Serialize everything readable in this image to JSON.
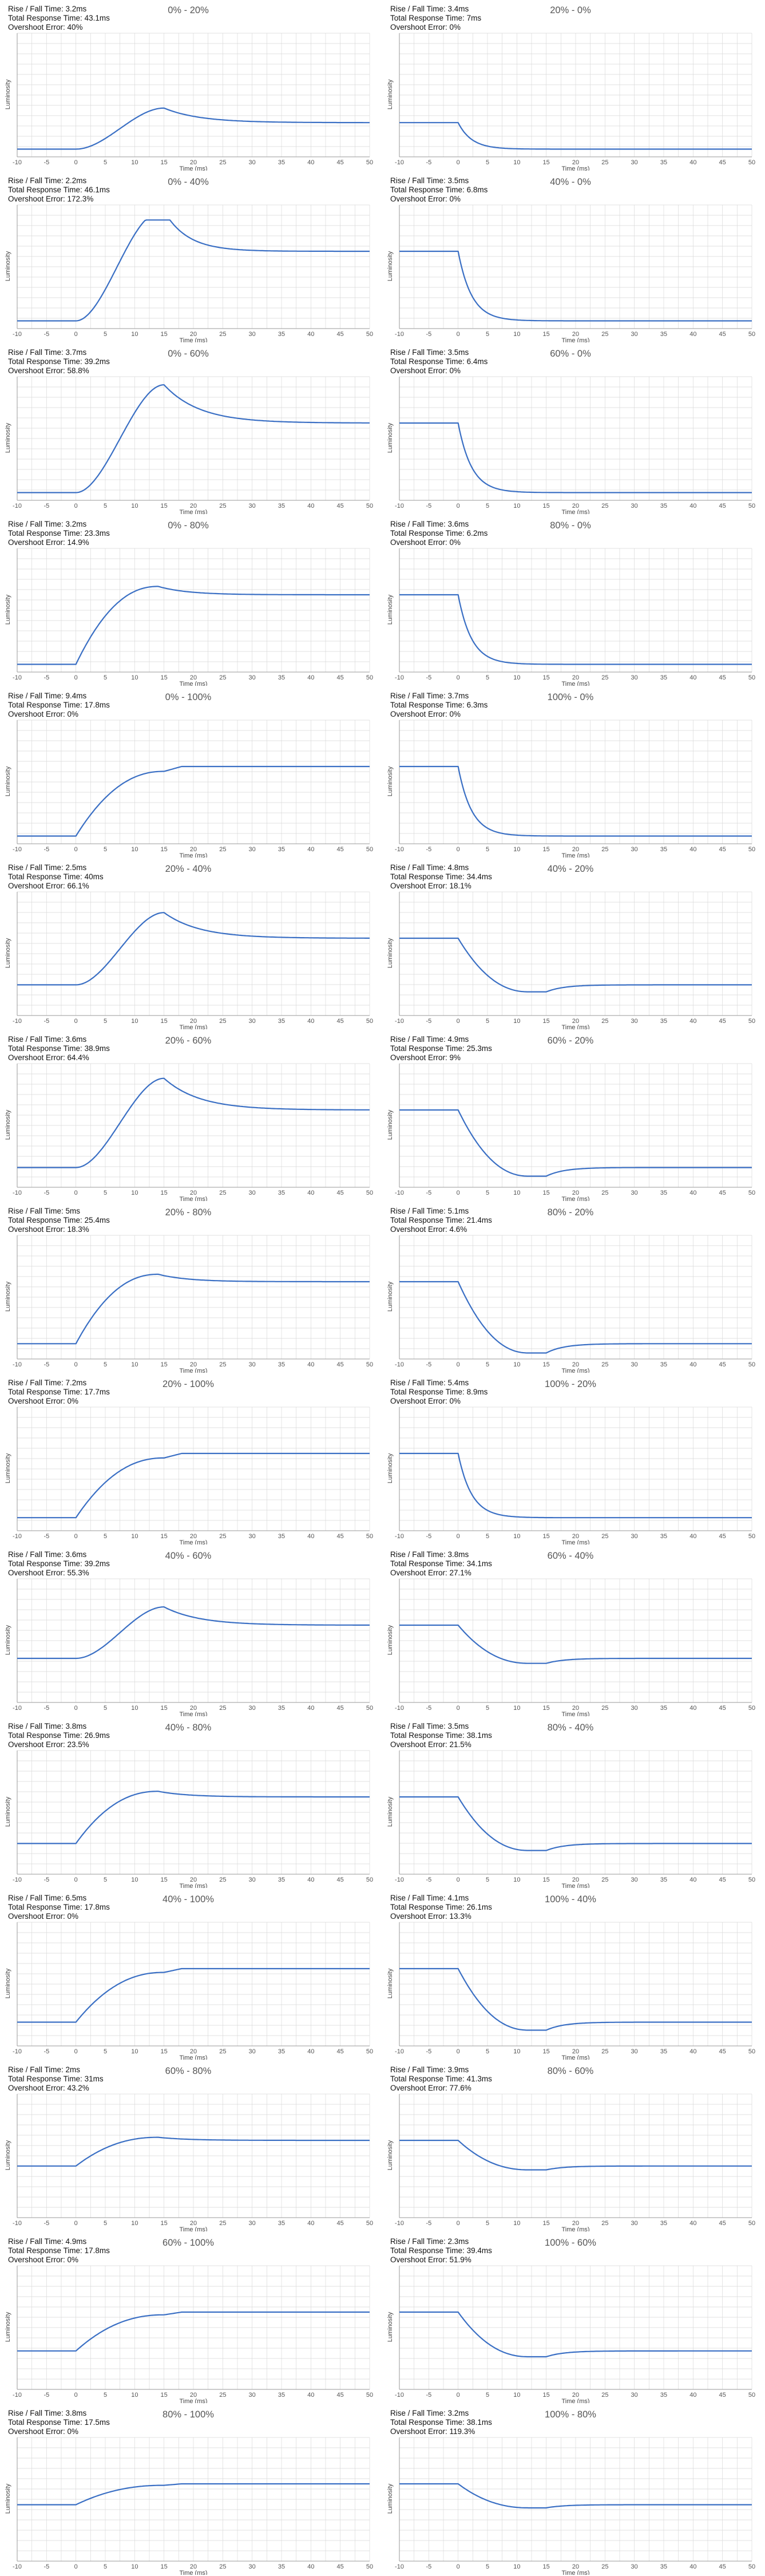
{
  "style": {
    "line_color": "#3a6fc4",
    "grid_color": "#d9d9d9",
    "axis_color": "#9a9a9a"
  },
  "stat_labels": {
    "rise_fall": "Rise / Fall Time",
    "total": "Total Response Time",
    "overshoot": "Overshoot Error"
  },
  "chart_data": [
    {
      "type": "line",
      "title": "0% - 20%",
      "rise_fall": "3.2ms",
      "total": "43.1ms",
      "overshoot": "40%",
      "transition": [
        0,
        20
      ],
      "curve": "overshoot_slow",
      "xlabel": "Time (ms)",
      "ylabel": "Luminosity",
      "xlim": [
        -10,
        50
      ],
      "x_ticks": [
        -10,
        -5,
        0,
        5,
        10,
        15,
        20,
        25,
        30,
        35,
        40,
        45,
        50
      ],
      "grid": true
    },
    {
      "type": "line",
      "title": "20% - 0%",
      "rise_fall": "3.4ms",
      "total": "7ms",
      "overshoot": "0%",
      "transition": [
        20,
        0
      ],
      "curve": "fall_clean",
      "xlabel": "Time (ms)",
      "ylabel": "Luminosity",
      "xlim": [
        -10,
        50
      ],
      "x_ticks": [
        -10,
        -5,
        0,
        5,
        10,
        15,
        20,
        25,
        30,
        35,
        40,
        45,
        50
      ],
      "grid": true
    },
    {
      "type": "line",
      "title": "0% - 40%",
      "rise_fall": "2.2ms",
      "total": "46.1ms",
      "overshoot": "172.3%",
      "transition": [
        0,
        40
      ],
      "curve": "overshoot_clipped",
      "xlabel": "Time (ms)",
      "ylabel": "Luminosity",
      "xlim": [
        -10,
        50
      ],
      "x_ticks": [
        -10,
        -5,
        0,
        5,
        10,
        15,
        20,
        25,
        30,
        35,
        40,
        45,
        50
      ],
      "grid": true
    },
    {
      "type": "line",
      "title": "40% - 0%",
      "rise_fall": "3.5ms",
      "total": "6.8ms",
      "overshoot": "0%",
      "transition": [
        40,
        0
      ],
      "curve": "fall_clean",
      "xlabel": "Time (ms)",
      "ylabel": "Luminosity",
      "xlim": [
        -10,
        50
      ],
      "x_ticks": [
        -10,
        -5,
        0,
        5,
        10,
        15,
        20,
        25,
        30,
        35,
        40,
        45,
        50
      ],
      "grid": true
    },
    {
      "type": "line",
      "title": "0% - 60%",
      "rise_fall": "3.7ms",
      "total": "39.2ms",
      "overshoot": "58.8%",
      "transition": [
        0,
        60
      ],
      "curve": "overshoot_slow",
      "xlabel": "Time (ms)",
      "ylabel": "Luminosity",
      "xlim": [
        -10,
        50
      ],
      "x_ticks": [
        -10,
        -5,
        0,
        5,
        10,
        15,
        20,
        25,
        30,
        35,
        40,
        45,
        50
      ],
      "grid": true
    },
    {
      "type": "line",
      "title": "60% - 0%",
      "rise_fall": "3.5ms",
      "total": "6.4ms",
      "overshoot": "0%",
      "transition": [
        60,
        0
      ],
      "curve": "fall_clean",
      "xlabel": "Time (ms)",
      "ylabel": "Luminosity",
      "xlim": [
        -10,
        50
      ],
      "x_ticks": [
        -10,
        -5,
        0,
        5,
        10,
        15,
        20,
        25,
        30,
        35,
        40,
        45,
        50
      ],
      "grid": true
    },
    {
      "type": "line",
      "title": "0% - 80%",
      "rise_fall": "3.2ms",
      "total": "23.3ms",
      "overshoot": "14.9%",
      "transition": [
        0,
        80
      ],
      "curve": "overshoot_small",
      "xlabel": "Time (ms)",
      "ylabel": "Luminosity",
      "xlim": [
        -10,
        50
      ],
      "x_ticks": [
        -10,
        -5,
        0,
        5,
        10,
        15,
        20,
        25,
        30,
        35,
        40,
        45,
        50
      ],
      "grid": true
    },
    {
      "type": "line",
      "title": "80% - 0%",
      "rise_fall": "3.6ms",
      "total": "6.2ms",
      "overshoot": "0%",
      "transition": [
        80,
        0
      ],
      "curve": "fall_clean",
      "xlabel": "Time (ms)",
      "ylabel": "Luminosity",
      "xlim": [
        -10,
        50
      ],
      "x_ticks": [
        -10,
        -5,
        0,
        5,
        10,
        15,
        20,
        25,
        30,
        35,
        40,
        45,
        50
      ],
      "grid": true
    },
    {
      "type": "line",
      "title": "0% - 100%",
      "rise_fall": "9.4ms",
      "total": "17.8ms",
      "overshoot": "0%",
      "transition": [
        0,
        100
      ],
      "curve": "rise_clean",
      "xlabel": "Time (ms)",
      "ylabel": "Luminosity",
      "xlim": [
        -10,
        50
      ],
      "x_ticks": [
        -10,
        -5,
        0,
        5,
        10,
        15,
        20,
        25,
        30,
        35,
        40,
        45,
        50
      ],
      "grid": true
    },
    {
      "type": "line",
      "title": "100% - 0%",
      "rise_fall": "3.7ms",
      "total": "6.3ms",
      "overshoot": "0%",
      "transition": [
        100,
        0
      ],
      "curve": "fall_clean",
      "xlabel": "Time (ms)",
      "ylabel": "Luminosity",
      "xlim": [
        -10,
        50
      ],
      "x_ticks": [
        -10,
        -5,
        0,
        5,
        10,
        15,
        20,
        25,
        30,
        35,
        40,
        45,
        50
      ],
      "grid": true
    },
    {
      "type": "line",
      "title": "20% - 40%",
      "rise_fall": "2.5ms",
      "total": "40ms",
      "overshoot": "66.1%",
      "transition": [
        20,
        40
      ],
      "curve": "overshoot_slow",
      "xlabel": "Time (ms)",
      "ylabel": "Luminosity",
      "xlim": [
        -10,
        50
      ],
      "x_ticks": [
        -10,
        -5,
        0,
        5,
        10,
        15,
        20,
        25,
        30,
        35,
        40,
        45,
        50
      ],
      "grid": true
    },
    {
      "type": "line",
      "title": "40% - 20%",
      "rise_fall": "4.8ms",
      "total": "34.4ms",
      "overshoot": "18.1%",
      "transition": [
        40,
        20
      ],
      "curve": "undershoot",
      "xlabel": "Time (ms)",
      "ylabel": "Luminosity",
      "xlim": [
        -10,
        50
      ],
      "x_ticks": [
        -10,
        -5,
        0,
        5,
        10,
        15,
        20,
        25,
        30,
        35,
        40,
        45,
        50
      ],
      "grid": true
    },
    {
      "type": "line",
      "title": "20% - 60%",
      "rise_fall": "3.6ms",
      "total": "38.9ms",
      "overshoot": "64.4%",
      "transition": [
        20,
        60
      ],
      "curve": "overshoot_slow",
      "xlabel": "Time (ms)",
      "ylabel": "Luminosity",
      "xlim": [
        -10,
        50
      ],
      "x_ticks": [
        -10,
        -5,
        0,
        5,
        10,
        15,
        20,
        25,
        30,
        35,
        40,
        45,
        50
      ],
      "grid": true
    },
    {
      "type": "line",
      "title": "60% - 20%",
      "rise_fall": "4.9ms",
      "total": "25.3ms",
      "overshoot": "9%",
      "transition": [
        60,
        20
      ],
      "curve": "undershoot",
      "xlabel": "Time (ms)",
      "ylabel": "Luminosity",
      "xlim": [
        -10,
        50
      ],
      "x_ticks": [
        -10,
        -5,
        0,
        5,
        10,
        15,
        20,
        25,
        30,
        35,
        40,
        45,
        50
      ],
      "grid": true
    },
    {
      "type": "line",
      "title": "20% - 80%",
      "rise_fall": "5ms",
      "total": "25.4ms",
      "overshoot": "18.3%",
      "transition": [
        20,
        80
      ],
      "curve": "overshoot_small",
      "xlabel": "Time (ms)",
      "ylabel": "Luminosity",
      "xlim": [
        -10,
        50
      ],
      "x_ticks": [
        -10,
        -5,
        0,
        5,
        10,
        15,
        20,
        25,
        30,
        35,
        40,
        45,
        50
      ],
      "grid": true
    },
    {
      "type": "line",
      "title": "80% - 20%",
      "rise_fall": "5.1ms",
      "total": "21.4ms",
      "overshoot": "4.6%",
      "transition": [
        80,
        20
      ],
      "curve": "undershoot",
      "xlabel": "Time (ms)",
      "ylabel": "Luminosity",
      "xlim": [
        -10,
        50
      ],
      "x_ticks": [
        -10,
        -5,
        0,
        5,
        10,
        15,
        20,
        25,
        30,
        35,
        40,
        45,
        50
      ],
      "grid": true
    },
    {
      "type": "line",
      "title": "20% - 100%",
      "rise_fall": "7.2ms",
      "total": "17.7ms",
      "overshoot": "0%",
      "transition": [
        20,
        100
      ],
      "curve": "rise_clean",
      "xlabel": "Time (ms)",
      "ylabel": "Luminosity",
      "xlim": [
        -10,
        50
      ],
      "x_ticks": [
        -10,
        -5,
        0,
        5,
        10,
        15,
        20,
        25,
        30,
        35,
        40,
        45,
        50
      ],
      "grid": true
    },
    {
      "type": "line",
      "title": "100% - 20%",
      "rise_fall": "5.4ms",
      "total": "8.9ms",
      "overshoot": "0%",
      "transition": [
        100,
        20
      ],
      "curve": "fall_clean",
      "xlabel": "Time (ms)",
      "ylabel": "Luminosity",
      "xlim": [
        -10,
        50
      ],
      "x_ticks": [
        -10,
        -5,
        0,
        5,
        10,
        15,
        20,
        25,
        30,
        35,
        40,
        45,
        50
      ],
      "grid": true
    },
    {
      "type": "line",
      "title": "40% - 60%",
      "rise_fall": "3.6ms",
      "total": "39.2ms",
      "overshoot": "55.3%",
      "transition": [
        40,
        60
      ],
      "curve": "overshoot_slow",
      "xlabel": "Time (ms)",
      "ylabel": "Luminosity",
      "xlim": [
        -10,
        50
      ],
      "x_ticks": [
        -10,
        -5,
        0,
        5,
        10,
        15,
        20,
        25,
        30,
        35,
        40,
        45,
        50
      ],
      "grid": true
    },
    {
      "type": "line",
      "title": "60% - 40%",
      "rise_fall": "3.8ms",
      "total": "34.1ms",
      "overshoot": "27.1%",
      "transition": [
        60,
        40
      ],
      "curve": "undershoot",
      "xlabel": "Time (ms)",
      "ylabel": "Luminosity",
      "xlim": [
        -10,
        50
      ],
      "x_ticks": [
        -10,
        -5,
        0,
        5,
        10,
        15,
        20,
        25,
        30,
        35,
        40,
        45,
        50
      ],
      "grid": true
    },
    {
      "type": "line",
      "title": "40% - 80%",
      "rise_fall": "3.8ms",
      "total": "26.9ms",
      "overshoot": "23.5%",
      "transition": [
        40,
        80
      ],
      "curve": "overshoot_small",
      "xlabel": "Time (ms)",
      "ylabel": "Luminosity",
      "xlim": [
        -10,
        50
      ],
      "x_ticks": [
        -10,
        -5,
        0,
        5,
        10,
        15,
        20,
        25,
        30,
        35,
        40,
        45,
        50
      ],
      "grid": true
    },
    {
      "type": "line",
      "title": "80% - 40%",
      "rise_fall": "3.5ms",
      "total": "38.1ms",
      "overshoot": "21.5%",
      "transition": [
        80,
        40
      ],
      "curve": "undershoot",
      "xlabel": "Time (ms)",
      "ylabel": "Luminosity",
      "xlim": [
        -10,
        50
      ],
      "x_ticks": [
        -10,
        -5,
        0,
        5,
        10,
        15,
        20,
        25,
        30,
        35,
        40,
        45,
        50
      ],
      "grid": true
    },
    {
      "type": "line",
      "title": "40% - 100%",
      "rise_fall": "6.5ms",
      "total": "17.8ms",
      "overshoot": "0%",
      "transition": [
        40,
        100
      ],
      "curve": "rise_clean",
      "xlabel": "Time (ms)",
      "ylabel": "Luminosity",
      "xlim": [
        -10,
        50
      ],
      "x_ticks": [
        -10,
        -5,
        0,
        5,
        10,
        15,
        20,
        25,
        30,
        35,
        40,
        45,
        50
      ],
      "grid": true
    },
    {
      "type": "line",
      "title": "100% - 40%",
      "rise_fall": "4.1ms",
      "total": "26.1ms",
      "overshoot": "13.3%",
      "transition": [
        100,
        40
      ],
      "curve": "undershoot",
      "xlabel": "Time (ms)",
      "ylabel": "Luminosity",
      "xlim": [
        -10,
        50
      ],
      "x_ticks": [
        -10,
        -5,
        0,
        5,
        10,
        15,
        20,
        25,
        30,
        35,
        40,
        45,
        50
      ],
      "grid": true
    },
    {
      "type": "line",
      "title": "60% - 80%",
      "rise_fall": "2ms",
      "total": "31ms",
      "overshoot": "43.2%",
      "transition": [
        60,
        80
      ],
      "curve": "overshoot_small",
      "xlabel": "Time (ms)",
      "ylabel": "Luminosity",
      "xlim": [
        -10,
        50
      ],
      "x_ticks": [
        -10,
        -5,
        0,
        5,
        10,
        15,
        20,
        25,
        30,
        35,
        40,
        45,
        50
      ],
      "grid": true
    },
    {
      "type": "line",
      "title": "80% - 60%",
      "rise_fall": "3.9ms",
      "total": "41.3ms",
      "overshoot": "77.6%",
      "transition": [
        80,
        60
      ],
      "curve": "undershoot",
      "xlabel": "Time (ms)",
      "ylabel": "Luminosity",
      "xlim": [
        -10,
        50
      ],
      "x_ticks": [
        -10,
        -5,
        0,
        5,
        10,
        15,
        20,
        25,
        30,
        35,
        40,
        45,
        50
      ],
      "grid": true
    },
    {
      "type": "line",
      "title": "60% - 100%",
      "rise_fall": "4.9ms",
      "total": "17.8ms",
      "overshoot": "0%",
      "transition": [
        60,
        100
      ],
      "curve": "rise_clean",
      "xlabel": "Time (ms)",
      "ylabel": "Luminosity",
      "xlim": [
        -10,
        50
      ],
      "x_ticks": [
        -10,
        -5,
        0,
        5,
        10,
        15,
        20,
        25,
        30,
        35,
        40,
        45,
        50
      ],
      "grid": true
    },
    {
      "type": "line",
      "title": "100% - 60%",
      "rise_fall": "2.3ms",
      "total": "39.4ms",
      "overshoot": "51.9%",
      "transition": [
        100,
        60
      ],
      "curve": "undershoot",
      "xlabel": "Time (ms)",
      "ylabel": "Luminosity",
      "xlim": [
        -10,
        50
      ],
      "x_ticks": [
        -10,
        -5,
        0,
        5,
        10,
        15,
        20,
        25,
        30,
        35,
        40,
        45,
        50
      ],
      "grid": true
    },
    {
      "type": "line",
      "title": "80% - 100%",
      "rise_fall": "3.8ms",
      "total": "17.5ms",
      "overshoot": "0%",
      "transition": [
        80,
        100
      ],
      "curve": "rise_clean",
      "xlabel": "Time (ms)",
      "ylabel": "Luminosity",
      "xlim": [
        -10,
        50
      ],
      "x_ticks": [
        -10,
        -5,
        0,
        5,
        10,
        15,
        20,
        25,
        30,
        35,
        40,
        45,
        50
      ],
      "grid": true
    },
    {
      "type": "line",
      "title": "100% - 80%",
      "rise_fall": "3.2ms",
      "total": "38.1ms",
      "overshoot": "119.3%",
      "transition": [
        100,
        80
      ],
      "curve": "undershoot",
      "xlabel": "Time (ms)",
      "ylabel": "Luminosity",
      "xlim": [
        -10,
        50
      ],
      "x_ticks": [
        -10,
        -5,
        0,
        5,
        10,
        15,
        20,
        25,
        30,
        35,
        40,
        45,
        50
      ],
      "grid": true
    }
  ]
}
